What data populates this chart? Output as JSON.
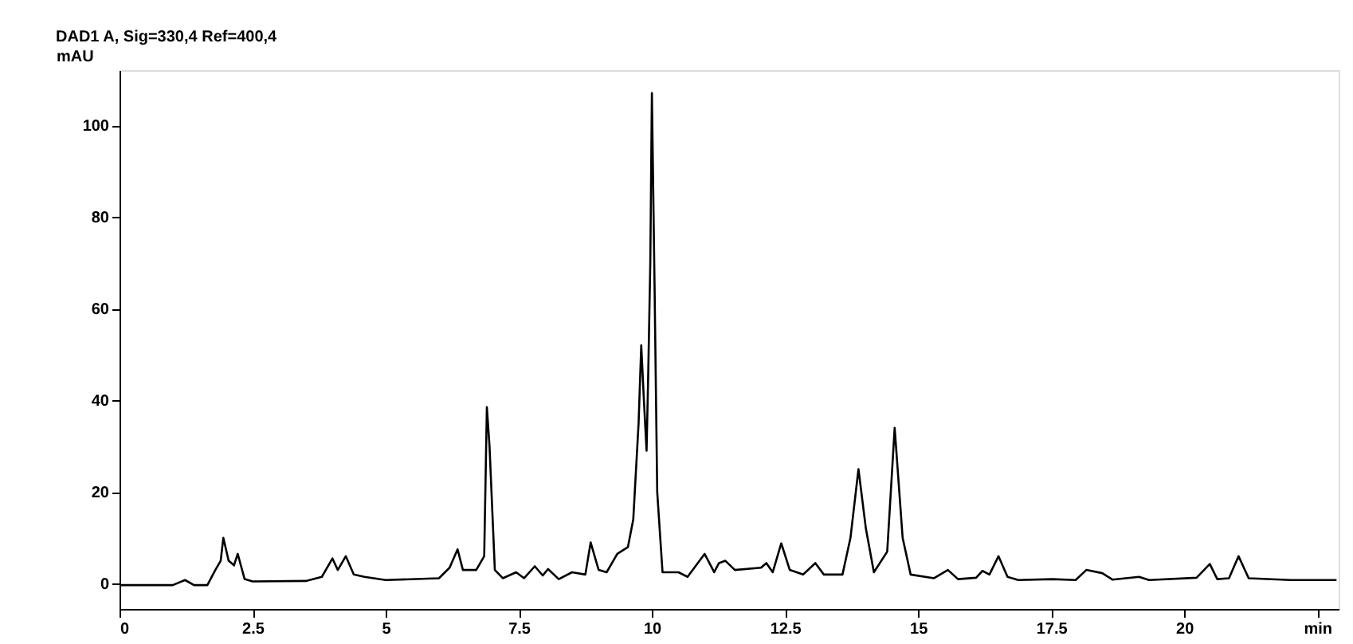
{
  "chart_data": {
    "type": "line",
    "title": "DAD1 A, Sig=330,4 Ref=400,4",
    "ylabel": "mAU",
    "xlim": [
      0,
      22.9
    ],
    "xticks": [
      0,
      2.5,
      5,
      7.5,
      10,
      12.5,
      15,
      17.5,
      20,
      {
        "value": 22.5,
        "label": "min"
      }
    ],
    "ylim": [
      -5.5,
      112
    ],
    "yticks": [
      0,
      20,
      40,
      60,
      80,
      100
    ],
    "grid": false,
    "marker": "none",
    "line_style": "solid",
    "series": [
      {
        "color": "#000000",
        "x": [
          0,
          1.0,
          1.23,
          1.4,
          1.65,
          1.8,
          1.9,
          1.95,
          2.05,
          2.15,
          2.22,
          2.35,
          2.5,
          3.5,
          3.8,
          4.0,
          4.1,
          4.25,
          4.4,
          4.6,
          5.0,
          6.0,
          6.2,
          6.35,
          6.45,
          6.7,
          6.85,
          6.9,
          6.95,
          7.05,
          7.2,
          7.45,
          7.6,
          7.8,
          7.95,
          8.05,
          8.25,
          8.5,
          8.75,
          8.85,
          9.0,
          9.15,
          9.35,
          9.55,
          9.65,
          9.75,
          9.8,
          9.85,
          9.9,
          9.93,
          9.97,
          10.0,
          10.05,
          10.1,
          10.2,
          10.5,
          10.67,
          10.99,
          11.17,
          11.26,
          11.38,
          11.56,
          12.05,
          12.15,
          12.27,
          12.43,
          12.59,
          12.84,
          13.07,
          13.23,
          13.58,
          13.73,
          13.88,
          14.02,
          14.17,
          14.42,
          14.56,
          14.71,
          14.86,
          15.3,
          15.56,
          15.75,
          16.09,
          16.21,
          16.34,
          16.51,
          16.68,
          16.88,
          17.52,
          17.96,
          18.16,
          18.46,
          18.65,
          19.15,
          19.34,
          20.23,
          20.48,
          20.62,
          20.84,
          21.02,
          21.21,
          22.0,
          22.86
        ],
        "values": [
          -0.3,
          -0.3,
          0.8,
          -0.3,
          -0.3,
          3,
          5,
          10,
          5,
          4,
          6.5,
          1,
          0.5,
          0.6,
          1.5,
          5.5,
          3,
          6,
          2,
          1.5,
          0.8,
          1.2,
          3.5,
          7.5,
          3,
          3,
          6,
          38.5,
          30,
          3,
          1.2,
          2.5,
          1.2,
          3.8,
          1.8,
          3.2,
          1,
          2.5,
          2,
          9,
          3,
          2.5,
          6.5,
          8,
          14,
          35,
          52,
          40,
          29,
          45,
          70,
          107,
          65,
          20,
          2.5,
          2.5,
          1.5,
          6.5,
          2.5,
          4.5,
          5,
          3,
          3.5,
          4.5,
          2.5,
          8.8,
          3,
          2,
          4.5,
          2,
          2,
          10,
          25,
          12,
          2.5,
          7,
          34,
          10,
          2,
          1.2,
          3,
          1,
          1.3,
          2.8,
          2,
          6,
          1.5,
          0.8,
          1,
          0.8,
          3,
          2.3,
          0.9,
          1.5,
          0.8,
          1.3,
          4.3,
          1,
          1.2,
          6,
          1.2,
          0.8,
          0.8
        ]
      }
    ]
  }
}
